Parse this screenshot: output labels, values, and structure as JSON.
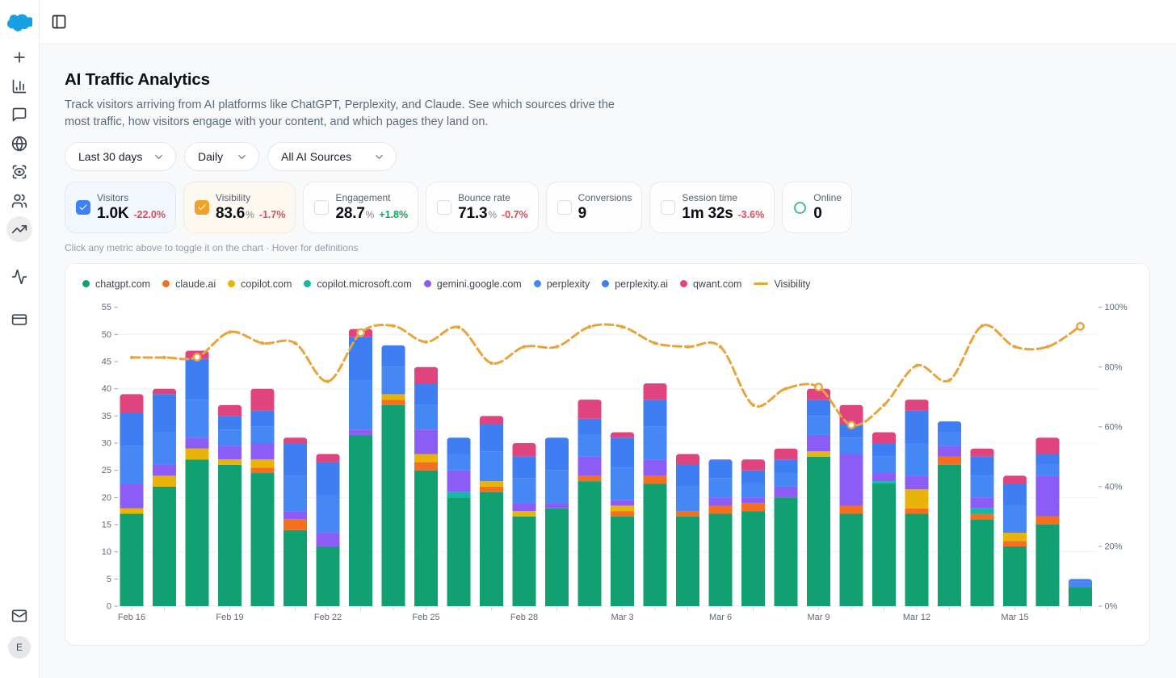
{
  "sidebar": {
    "logo_icon": "cloud-logo",
    "nav_primary": [
      {
        "icon": "plus-icon",
        "name": "new"
      },
      {
        "icon": "bar-chart-icon",
        "name": "analytics"
      },
      {
        "icon": "message-square-icon",
        "name": "messages"
      },
      {
        "icon": "globe-icon",
        "name": "web"
      },
      {
        "icon": "scan-eye-icon",
        "name": "monitoring"
      },
      {
        "icon": "users-icon",
        "name": "audience"
      },
      {
        "icon": "trending-up-icon",
        "name": "trends",
        "active": true
      }
    ],
    "nav_secondary": [
      {
        "icon": "activity-icon",
        "name": "activity"
      },
      {
        "icon": "credit-card-icon",
        "name": "billing"
      }
    ],
    "bottom": {
      "mail_icon": "mail-icon",
      "avatar_letter": "E"
    }
  },
  "topbar": {
    "toggle_icon": "panel-left-icon"
  },
  "page": {
    "title": "AI Traffic Analytics",
    "description": "Track visitors arriving from AI platforms like ChatGPT, Perplexity, and Claude. See which sources drive the most traffic, how visitors engage with your content, and which pages they land on.",
    "hint": "Click any metric above to toggle it on the chart · Hover for definitions"
  },
  "filters": [
    {
      "label": "Last 30 days",
      "min_width": 138
    },
    {
      "label": "Daily",
      "min_width": 93
    },
    {
      "label": "All AI Sources",
      "min_width": 160
    }
  ],
  "metrics": [
    {
      "label": "Visitors",
      "value": "1.0K",
      "suffix": "",
      "delta": "-22.0%",
      "direction": "down",
      "state": "checked",
      "accent": "#3b82f6",
      "card": "sel-blue"
    },
    {
      "label": "Visibility",
      "value": "83.6",
      "suffix": "%",
      "delta": "-1.7%",
      "direction": "down",
      "state": "checked",
      "accent": "#f0a32a",
      "card": "sel-amber"
    },
    {
      "label": "Engagement",
      "value": "28.7",
      "suffix": "%",
      "delta": "+1.8%",
      "direction": "up",
      "state": "unchecked",
      "accent": "",
      "card": ""
    },
    {
      "label": "Bounce rate",
      "value": "71.3",
      "suffix": "%",
      "delta": "-0.7%",
      "direction": "down",
      "state": "unchecked",
      "accent": "",
      "card": ""
    },
    {
      "label": "Conversions",
      "value": "9",
      "suffix": "",
      "delta": "",
      "direction": "",
      "state": "unchecked",
      "accent": "",
      "card": ""
    },
    {
      "label": "Session time",
      "value": "1m 32s",
      "suffix": "",
      "delta": "-3.6%",
      "direction": "down",
      "state": "unchecked",
      "accent": "",
      "card": ""
    },
    {
      "label": "Online",
      "value": "0",
      "suffix": "",
      "delta": "",
      "direction": "",
      "state": "online",
      "accent": "#46c184",
      "card": ""
    }
  ],
  "chart_data": {
    "type": "stacked-bar+line",
    "x": [
      "Feb 16",
      "Feb 17",
      "Feb 18",
      "Feb 19",
      "Feb 20",
      "Feb 21",
      "Feb 22",
      "Feb 23",
      "Feb 24",
      "Feb 25",
      "Feb 26",
      "Feb 27",
      "Feb 28",
      "Mar 1",
      "Mar 2",
      "Mar 3",
      "Mar 4",
      "Mar 5",
      "Mar 6",
      "Mar 7",
      "Mar 8",
      "Mar 9",
      "Mar 10",
      "Mar 11",
      "Mar 12",
      "Mar 13",
      "Mar 14",
      "Mar 15",
      "Mar 16",
      "Mar 17"
    ],
    "x_label_every": 3,
    "left_axis": {
      "min": 0,
      "max": 55,
      "tick_step": 5,
      "grid_step": 10
    },
    "right_axis": {
      "min": 0,
      "max": 100,
      "tick_step": 20,
      "unit": "%"
    },
    "bar_series": [
      {
        "name": "chatgpt.com",
        "color": "#10a071",
        "values": [
          17,
          22,
          27,
          26,
          24.5,
          14,
          11,
          31.5,
          37,
          25,
          20,
          21,
          16.5,
          18,
          23,
          16.5,
          22.5,
          16.5,
          17,
          17.5,
          20,
          27.5,
          17,
          22.5,
          17,
          26,
          16,
          11,
          15,
          3.5
        ]
      },
      {
        "name": "claude.ai",
        "color": "#f4701f",
        "values": [
          0,
          0,
          0,
          0,
          1,
          2,
          0,
          0,
          1,
          1.5,
          0,
          1,
          0,
          0,
          1,
          1,
          1.5,
          1,
          1.5,
          1.5,
          0,
          0,
          1.5,
          0,
          1,
          1.5,
          1,
          1,
          1.5,
          0
        ]
      },
      {
        "name": "copilot.com",
        "color": "#eab308",
        "values": [
          1,
          2,
          2,
          1,
          1.5,
          0,
          0,
          0,
          1,
          1.5,
          0,
          1,
          1,
          0,
          0,
          1,
          0,
          0,
          0,
          0,
          0,
          1,
          0,
          0,
          3.5,
          0,
          0,
          1.5,
          0,
          0
        ]
      },
      {
        "name": "copilot.microsoft.com",
        "color": "#14b8a6",
        "values": [
          0,
          0,
          0,
          0,
          0,
          0,
          0,
          0,
          0,
          0,
          1,
          0,
          0,
          0,
          0,
          0,
          0,
          0,
          0,
          0,
          0,
          0,
          0,
          0.5,
          0,
          0,
          1,
          0,
          0,
          0
        ]
      },
      {
        "name": "gemini.google.com",
        "color": "#8b5cf6",
        "values": [
          4.5,
          2,
          2,
          2.5,
          3,
          1.5,
          2.5,
          1,
          0,
          4.5,
          4,
          0,
          1.5,
          1,
          3.5,
          1,
          3,
          0,
          1.5,
          1,
          2,
          3,
          9.5,
          1.5,
          2.5,
          2,
          2,
          0,
          7.5,
          0
        ]
      },
      {
        "name": "perplexity",
        "color": "#4487f5",
        "values": [
          7,
          6,
          7,
          3,
          3,
          6.5,
          7,
          9,
          5,
          4.5,
          3,
          5.5,
          4.5,
          6,
          4,
          6,
          6,
          4.5,
          3.5,
          2.5,
          2.5,
          3.5,
          3,
          3,
          6,
          2.5,
          4,
          5,
          2,
          1
        ]
      },
      {
        "name": "perplexity.ai",
        "color": "#3f7ef2",
        "values": [
          6,
          7,
          7.5,
          2.5,
          3,
          6,
          6,
          8,
          4,
          4,
          3,
          5,
          4,
          6,
          3,
          5.5,
          5,
          4,
          3.5,
          2.5,
          2.5,
          3,
          2.5,
          2.5,
          6,
          2,
          3.5,
          4,
          2,
          0.5
        ]
      },
      {
        "name": "qwant.com",
        "color": "#e0447e",
        "values": [
          3.5,
          1,
          1.5,
          2,
          4,
          1,
          1.5,
          1.5,
          0,
          3,
          0,
          1.5,
          2.5,
          0,
          3.5,
          1,
          3,
          2,
          0,
          2,
          2,
          2,
          3.5,
          2,
          2,
          0,
          1.5,
          1.5,
          3,
          0
        ]
      }
    ],
    "line_series": {
      "name": "Visibility",
      "color": "#e7a43b",
      "axis": "right",
      "values": [
        83.2,
        83.2,
        83.3,
        91.7,
        88,
        88,
        75.2,
        91.5,
        93.8,
        88.4,
        93.3,
        81.3,
        86.8,
        86.8,
        93.5,
        93.5,
        88,
        86.8,
        86.8,
        67.3,
        72.8,
        73.3,
        60.6,
        67.3,
        80.5,
        75.6,
        93.8,
        86.8,
        86.8,
        93.6
      ],
      "highlight_markers": [
        2,
        7,
        21,
        22,
        29
      ]
    }
  }
}
